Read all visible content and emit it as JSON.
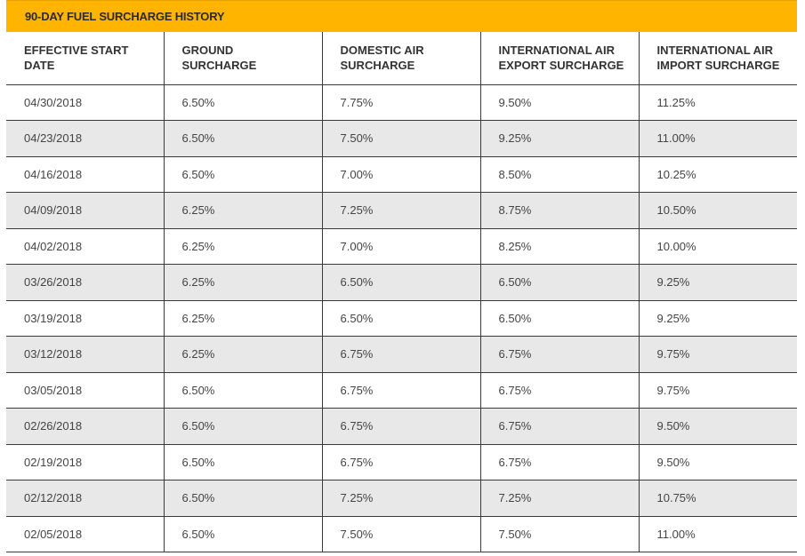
{
  "title": "90-DAY FUEL SURCHARGE HISTORY",
  "headers": [
    [
      "EFFECTIVE START",
      "DATE"
    ],
    [
      "GROUND",
      "SURCHARGE"
    ],
    [
      "DOMESTIC AIR",
      "SURCHARGE"
    ],
    [
      "INTERNATIONAL AIR",
      "EXPORT SURCHARGE"
    ],
    [
      "INTERNATIONAL AIR",
      "IMPORT SURCHARGE"
    ]
  ],
  "rows": [
    [
      "04/30/2018",
      "6.50%",
      "7.75%",
      "9.50%",
      "11.25%"
    ],
    [
      "04/23/2018",
      "6.50%",
      "7.50%",
      "9.25%",
      "11.00%"
    ],
    [
      "04/16/2018",
      "6.50%",
      "7.00%",
      "8.50%",
      "10.25%"
    ],
    [
      "04/09/2018",
      "6.25%",
      "7.25%",
      "8.75%",
      "10.50%"
    ],
    [
      "04/02/2018",
      "6.25%",
      "7.00%",
      "8.25%",
      "10.00%"
    ],
    [
      "03/26/2018",
      "6.25%",
      "6.50%",
      "6.50%",
      "9.25%"
    ],
    [
      "03/19/2018",
      "6.25%",
      "6.50%",
      "6.50%",
      "9.25%"
    ],
    [
      "03/12/2018",
      "6.25%",
      "6.75%",
      "6.75%",
      "9.75%"
    ],
    [
      "03/05/2018",
      "6.50%",
      "6.75%",
      "6.75%",
      "9.75%"
    ],
    [
      "02/26/2018",
      "6.50%",
      "6.75%",
      "6.75%",
      "9.50%"
    ],
    [
      "02/19/2018",
      "6.50%",
      "6.75%",
      "6.75%",
      "9.50%"
    ],
    [
      "02/12/2018",
      "6.50%",
      "7.25%",
      "7.25%",
      "10.75%"
    ],
    [
      "02/05/2018",
      "6.50%",
      "7.50%",
      "7.50%",
      "11.00%"
    ]
  ],
  "colors": {
    "title_bar": "#ffb500",
    "stripe": "#e8e8e8"
  }
}
